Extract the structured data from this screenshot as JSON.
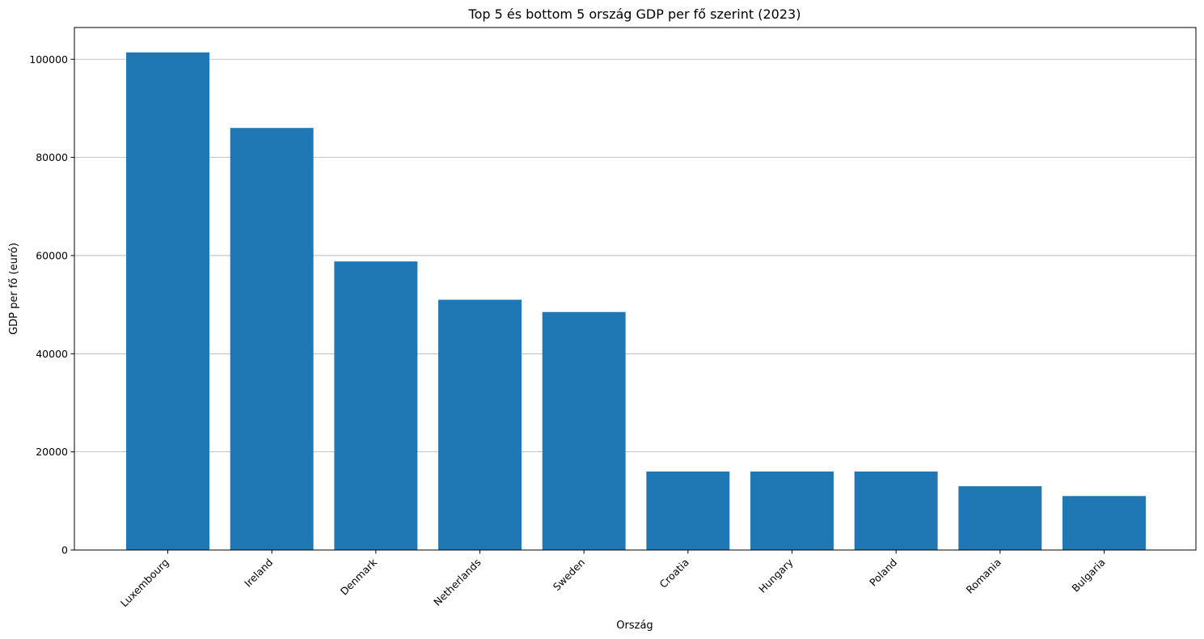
{
  "chart_data": {
    "type": "bar",
    "title": "Top 5 és bottom 5 ország GDP per fő szerint (2023)",
    "xlabel": "Ország",
    "ylabel": "GDP per fő (euró)",
    "categories": [
      "Luxembourg",
      "Ireland",
      "Denmark",
      "Netherlands",
      "Sweden",
      "Croatia",
      "Hungary",
      "Poland",
      "Romania",
      "Bulgaria"
    ],
    "values": [
      101400,
      86000,
      58800,
      51000,
      48500,
      16000,
      16000,
      16000,
      13000,
      11000
    ],
    "ylim": [
      0,
      106470
    ],
    "yticks": [
      0,
      20000,
      40000,
      60000,
      80000,
      100000
    ],
    "ytick_labels": [
      "0",
      "20000",
      "40000",
      "60000",
      "80000",
      "100000"
    ],
    "grid": "horizontal",
    "bar_color": "#1f77b4"
  }
}
